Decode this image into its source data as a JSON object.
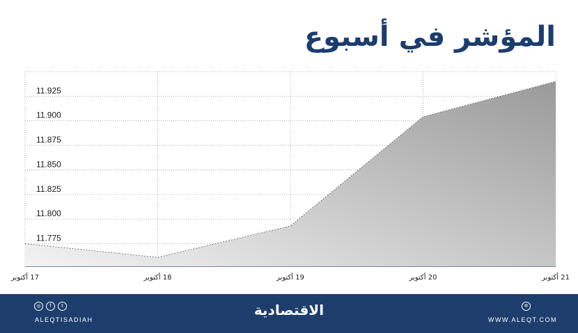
{
  "title": "المؤشر في أسبوع",
  "chart_data": {
    "type": "area",
    "title": "المؤشر في أسبوع",
    "categories": [
      "17 أكتوبر",
      "18 أكتوبر",
      "19 أكتوبر",
      "20 أكتوبر",
      "21 أكتوبر"
    ],
    "values": [
      11775,
      11761,
      11793,
      11904,
      11940
    ],
    "y_ticks": [
      "11.775",
      "11.800",
      "11.825",
      "11.850",
      "11.875",
      "11.900",
      "11.925"
    ],
    "y_tick_values": [
      11775,
      11800,
      11825,
      11850,
      11875,
      11900,
      11925
    ],
    "ylim": [
      11752,
      11950
    ],
    "grid": true
  },
  "footer": {
    "handle": "ALEQTISADIAH",
    "site": "WWW.ALEQT.COM",
    "logo": "الاقتصادية",
    "social_icons": [
      "instagram-icon",
      "facebook-icon",
      "twitter-icon"
    ]
  },
  "colors": {
    "brand": "#1d3e6c",
    "title": "#1b3d6e",
    "area_top": "#9a9a9a",
    "area_bottom": "#f2f2f2"
  }
}
